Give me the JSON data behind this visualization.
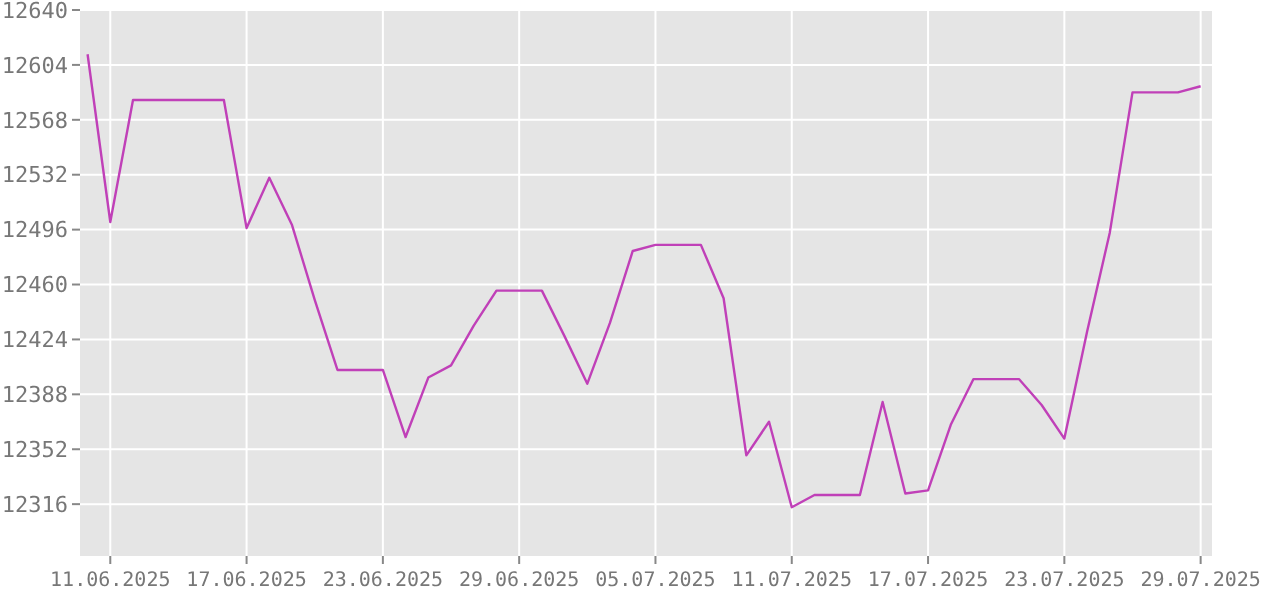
{
  "chart_data": {
    "type": "line",
    "x": [
      "2025-06-10",
      "2025-06-11",
      "2025-06-12",
      "2025-06-13",
      "2025-06-14",
      "2025-06-15",
      "2025-06-16",
      "2025-06-17",
      "2025-06-18",
      "2025-06-19",
      "2025-06-20",
      "2025-06-21",
      "2025-06-22",
      "2025-06-23",
      "2025-06-24",
      "2025-06-25",
      "2025-06-26",
      "2025-06-27",
      "2025-06-28",
      "2025-06-29",
      "2025-06-30",
      "2025-07-01",
      "2025-07-02",
      "2025-07-03",
      "2025-07-04",
      "2025-07-05",
      "2025-07-06",
      "2025-07-07",
      "2025-07-08",
      "2025-07-09",
      "2025-07-10",
      "2025-07-11",
      "2025-07-12",
      "2025-07-13",
      "2025-07-14",
      "2025-07-15",
      "2025-07-16",
      "2025-07-17",
      "2025-07-18",
      "2025-07-19",
      "2025-07-20",
      "2025-07-21",
      "2025-07-22",
      "2025-07-23",
      "2025-07-24",
      "2025-07-25",
      "2025-07-26",
      "2025-07-27",
      "2025-07-28",
      "2025-07-29"
    ],
    "series": [
      {
        "color": "#c040b8",
        "values": [
          12611,
          12501,
          12581,
          12581,
          12581,
          12581,
          12581,
          12497,
          12530,
          12499,
          12450,
          12404,
          12404,
          12404,
          12360,
          12399,
          12407,
          12433,
          12456,
          12456,
          12456,
          12426,
          12395,
          12435,
          12482,
          12486,
          12486,
          12486,
          12451,
          12348,
          12370,
          12314,
          12322,
          12322,
          12322,
          12383,
          12323,
          12325,
          12368,
          12398,
          12398,
          12398,
          12381,
          12359,
          12429,
          12494,
          12586,
          12586,
          12586,
          12590
        ]
      }
    ],
    "xlim": [
      "2025-06-09T16:00",
      "2025-07-29T12:00"
    ],
    "xticks": [
      {
        "value": "2025-06-11",
        "label": "11.06.2025"
      },
      {
        "value": "2025-06-17",
        "label": "17.06.2025"
      },
      {
        "value": "2025-06-23",
        "label": "23.06.2025"
      },
      {
        "value": "2025-06-29",
        "label": "29.06.2025"
      },
      {
        "value": "2025-07-05",
        "label": "05.07.2025"
      },
      {
        "value": "2025-07-11",
        "label": "11.07.2025"
      },
      {
        "value": "2025-07-17",
        "label": "17.07.2025"
      },
      {
        "value": "2025-07-23",
        "label": "23.07.2025"
      },
      {
        "value": "2025-07-29",
        "label": "29.07.2025"
      }
    ],
    "ylim": [
      12282,
      12640
    ],
    "yticks": [
      12316,
      12352,
      12388,
      12424,
      12460,
      12496,
      12532,
      12568,
      12604,
      12640
    ],
    "grid": true,
    "marker": "none",
    "line_style": "solid"
  }
}
